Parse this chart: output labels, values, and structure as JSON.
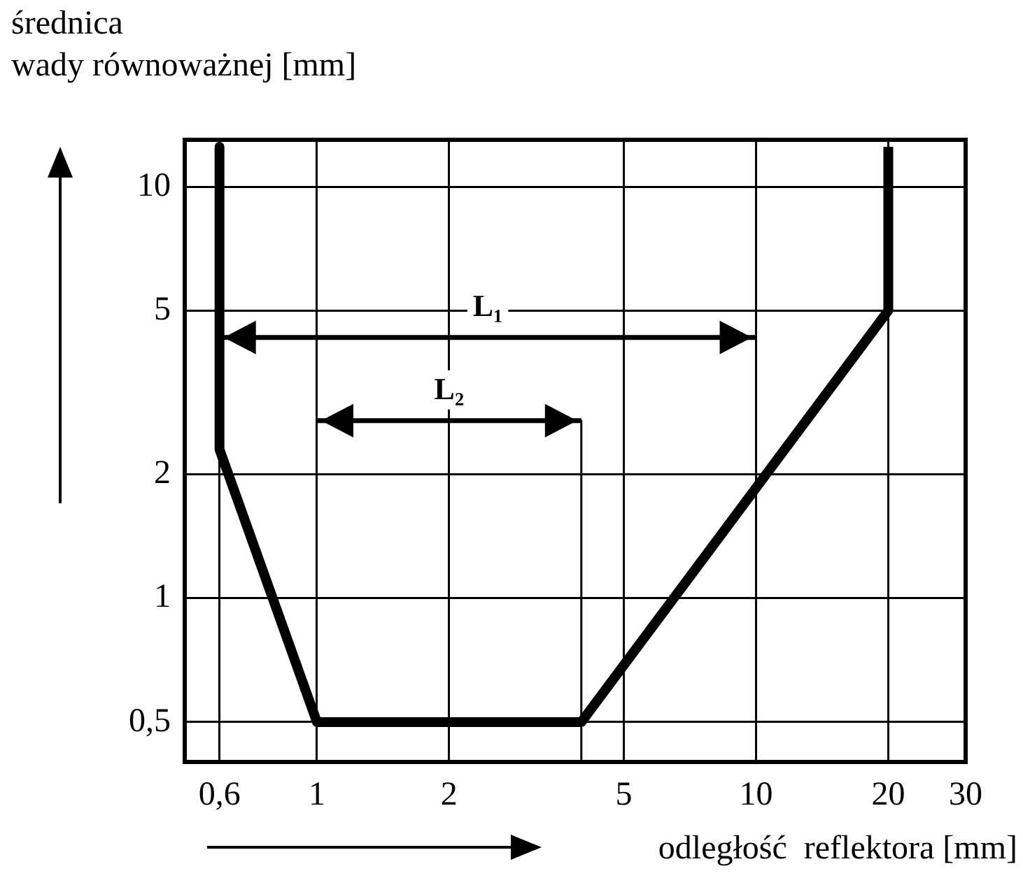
{
  "chart_data": {
    "type": "line",
    "xlabel": "odległość  reflektora [mm]",
    "ylabel": "średnica\nwady równoważnej [mm]",
    "log": "xy",
    "grid": true,
    "legend": false,
    "marker": "none",
    "line_style": "solid",
    "xlim": [
      0.5,
      30
    ],
    "xticks": [
      {
        "value": 0.6,
        "label": "0,6"
      },
      1,
      2,
      5,
      10,
      20,
      30
    ],
    "ylim": [
      0.4,
      13
    ],
    "yticks": [
      {
        "value": 0.5,
        "label": "0,5"
      },
      1,
      2,
      5,
      10
    ],
    "series": [
      {
        "color": "#000000",
        "x": [
          0.6,
          0.6,
          1,
          4,
          20,
          20
        ],
        "values": [
          12.5,
          2.3,
          0.5,
          0.5,
          5,
          12.5
        ]
      },
      {
        "name": "L₁",
        "color": "#000000",
        "x": [
          0.6,
          10
        ],
        "values": [
          4.3,
          4.3
        ]
      },
      {
        "name": "L₂",
        "color": "#000000",
        "x": [
          1,
          4
        ],
        "values": [
          2.7,
          2.7
        ]
      },
      {
        "color": "#000000",
        "x": [
          4,
          4
        ],
        "values": [
          2.7,
          0.4
        ]
      }
    ]
  }
}
